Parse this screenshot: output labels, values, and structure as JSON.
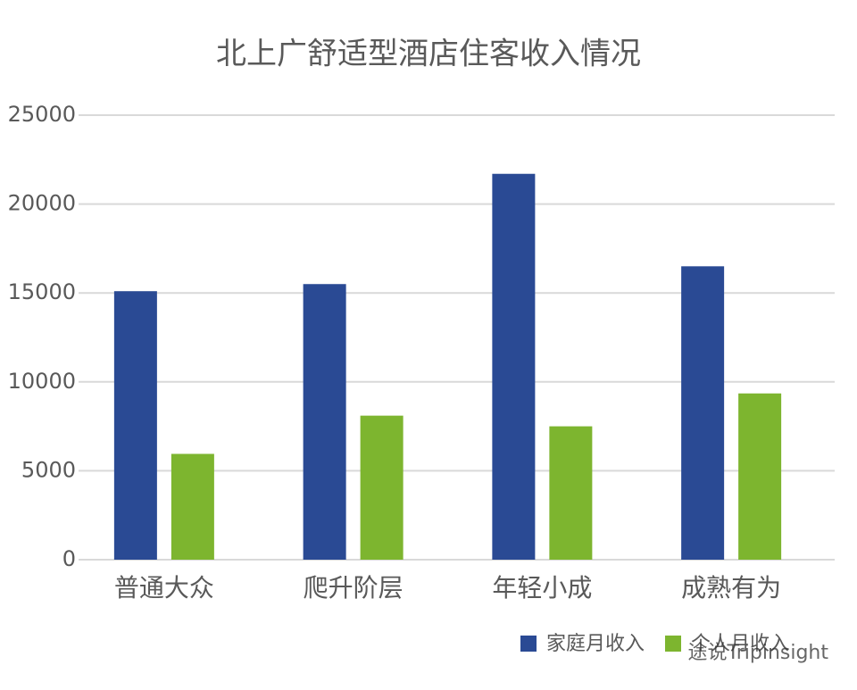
{
  "chart_data": {
    "type": "bar",
    "title": "北上广舒适型酒店住客收入情况",
    "categories": [
      "普通大众",
      "爬升阶层",
      "年轻小成",
      "成熟有为"
    ],
    "series": [
      {
        "name": "家庭月收入",
        "color": "#2a4a94",
        "values": [
          15100,
          15500,
          21700,
          16500
        ]
      },
      {
        "name": "个人月收入",
        "color": "#7db52f",
        "values": [
          5950,
          8100,
          7500,
          9350
        ]
      }
    ],
    "ylim": [
      0,
      25000
    ],
    "yticks": [
      0,
      5000,
      10000,
      15000,
      20000,
      25000
    ],
    "grid": true,
    "legend": "bottom-right",
    "watermark": "途说Tripinsight"
  }
}
